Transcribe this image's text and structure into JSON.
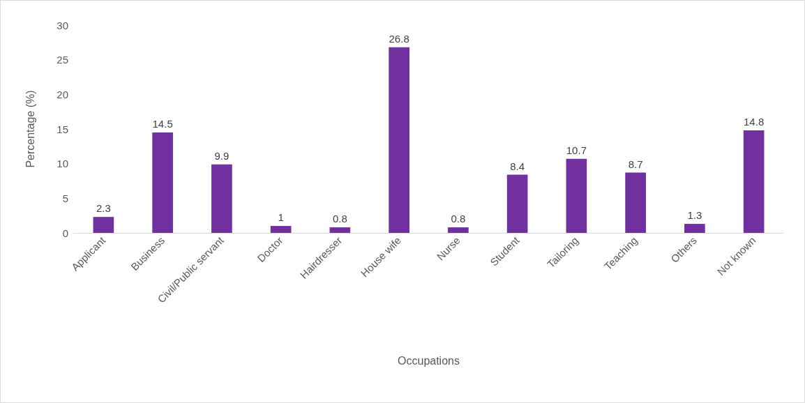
{
  "chart_data": {
    "type": "bar",
    "xlabel": "Occupations",
    "ylabel": "Percentage (%)",
    "categories": [
      "Applicant",
      "Business",
      "Civil/Public servant",
      "Doctor",
      "Hairdresser",
      "House wife",
      "Nurse",
      "Student",
      "Tailoring",
      "Teaching",
      "Others",
      "Not known"
    ],
    "values": [
      2.3,
      14.5,
      9.9,
      1,
      0.8,
      26.8,
      0.8,
      8.4,
      10.7,
      8.7,
      1.3,
      14.8
    ],
    "color": "#7030a0",
    "ylim": [
      0,
      30
    ],
    "yticks": [
      0,
      5,
      10,
      15,
      20,
      25,
      30
    ],
    "grid": false,
    "data_labels": true
  }
}
